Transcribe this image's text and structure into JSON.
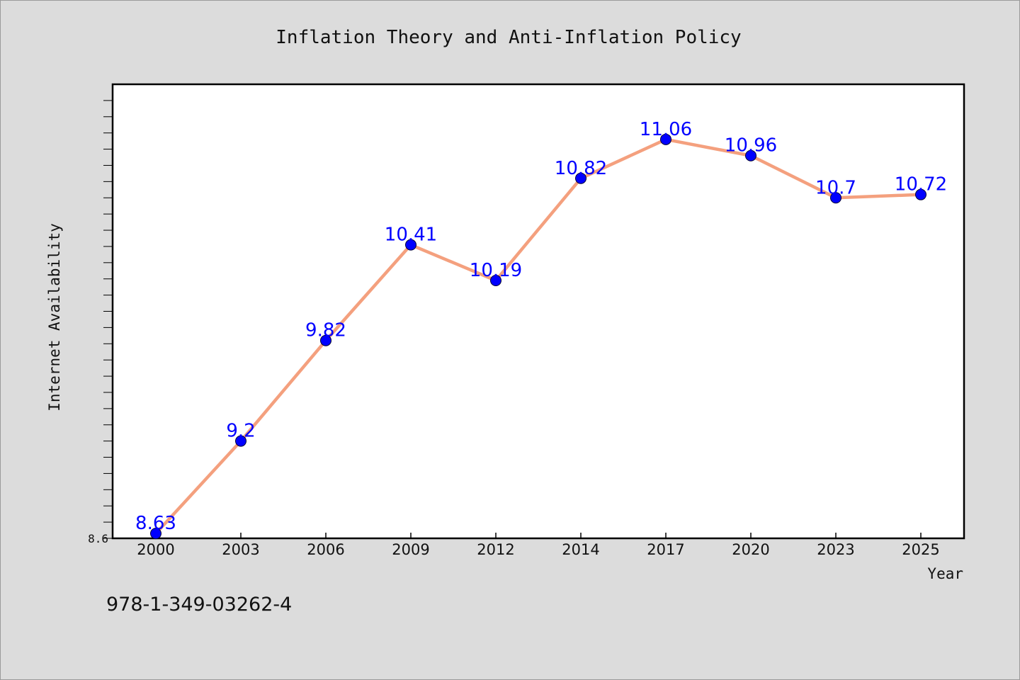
{
  "chart_data": {
    "type": "line",
    "title": "Inflation Theory and Anti-Inflation Policy",
    "xlabel": "Year",
    "ylabel": "Internet Availability",
    "categories": [
      "2000",
      "2003",
      "2006",
      "2009",
      "2012",
      "2014",
      "2017",
      "2020",
      "2023",
      "2025"
    ],
    "values": [
      8.63,
      9.2,
      9.82,
      10.41,
      10.19,
      10.82,
      11.06,
      10.96,
      10.7,
      10.72
    ],
    "data_labels": [
      "8.63",
      "9.2",
      "9.82",
      "10.41",
      "10.19",
      "10.82",
      "11.06",
      "10.96",
      "10.7",
      "10.72"
    ],
    "y_tick_labels": [
      {
        "value": 8.6,
        "label": "8.6"
      }
    ],
    "ylim": [
      8.6,
      11.4
    ],
    "y_minor_tick_step": 0.1,
    "grid": false,
    "legend": "none",
    "colors": {
      "line": "#f4a07e",
      "marker": "#0000ff",
      "data_label": "#0000ff",
      "background": "#dcdcdc",
      "plot_background": "#ffffff"
    }
  },
  "footer_text": "978-1-349-03262-4"
}
